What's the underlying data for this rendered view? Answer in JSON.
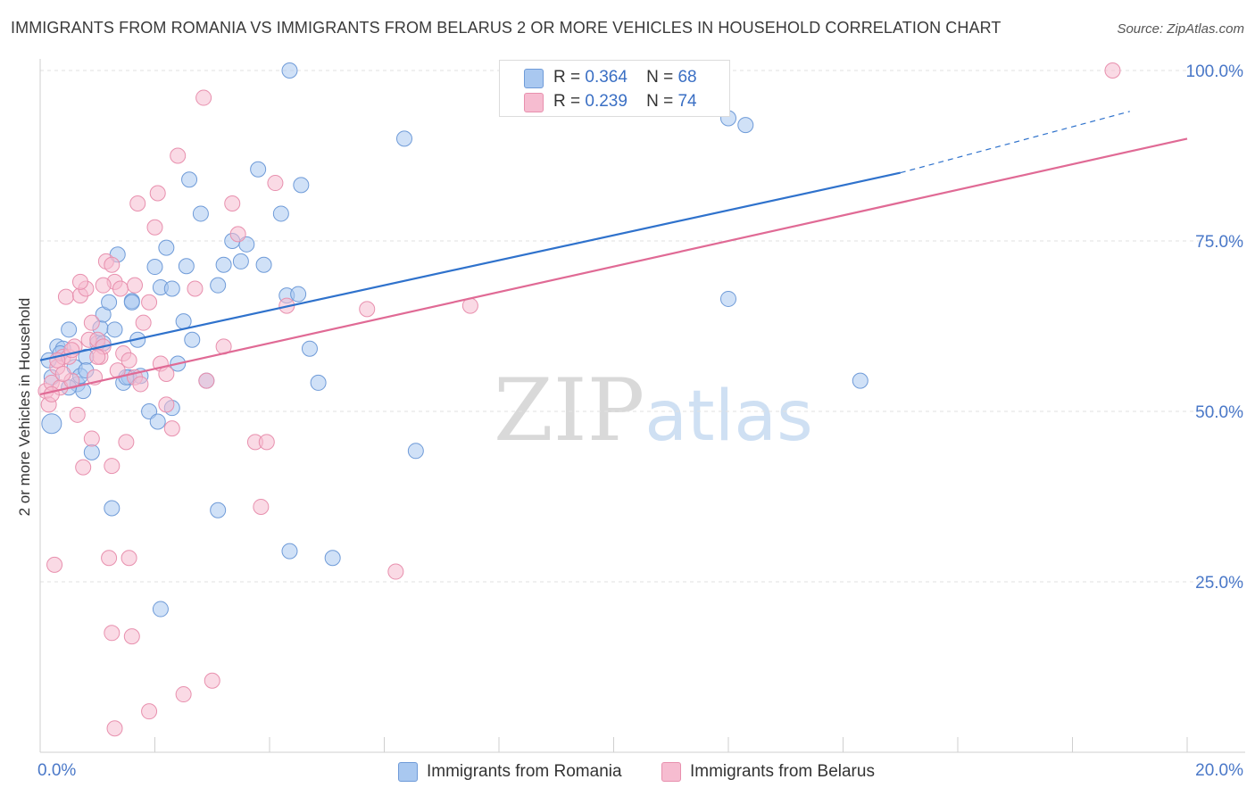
{
  "title": "IMMIGRANTS FROM ROMANIA VS IMMIGRANTS FROM BELARUS 2 OR MORE VEHICLES IN HOUSEHOLD CORRELATION CHART",
  "source": "Source: ZipAtlas.com",
  "watermark": {
    "zip": "ZIP",
    "atlas": "atlas"
  },
  "legend_top": {
    "rows": [
      {
        "r_label": "R =",
        "r_value": "0.364",
        "n_label": "N =",
        "n_value": "68"
      },
      {
        "r_label": "R =",
        "r_value": "0.239",
        "n_label": "N =",
        "n_value": "74"
      }
    ]
  },
  "colors": {
    "romania_fill": "#a9c8f0",
    "romania_stroke": "#6f9bd8",
    "romania_line": "#2f72cc",
    "belarus_fill": "#f6bcd0",
    "belarus_stroke": "#e890ae",
    "belarus_line": "#e06a95",
    "grid": "#e2e2e2",
    "axis_text": "#4a78c8"
  },
  "chart_data": {
    "type": "scatter",
    "title": "IMMIGRANTS FROM ROMANIA VS IMMIGRANTS FROM BELARUS 2 OR MORE VEHICLES IN HOUSEHOLD CORRELATION CHART",
    "xlabel": "",
    "ylabel": "2 or more Vehicles in Household",
    "xlim": [
      0,
      20
    ],
    "ylim": [
      0,
      100
    ],
    "x_tick_labels": [
      "0.0%",
      "20.0%"
    ],
    "y_ticks": [
      25,
      50,
      75,
      100
    ],
    "y_tick_labels": [
      "25.0%",
      "50.0%",
      "75.0%",
      "100.0%"
    ],
    "legend_position": "bottom-center",
    "series": [
      {
        "name": "Immigrants from Romania",
        "r": 0.364,
        "n": 68,
        "trend": {
          "x0": 0,
          "y0": 57.5,
          "x1": 15.0,
          "y1": 85.0,
          "dashed_to_x": 19.0,
          "dashed_to_y": 94.0
        },
        "points": [
          [
            0.15,
            57.5
          ],
          [
            0.2,
            48.2
          ],
          [
            0.3,
            59.5
          ],
          [
            0.4,
            59.2
          ],
          [
            0.5,
            62.0
          ],
          [
            0.6,
            56.5
          ],
          [
            0.65,
            54.0
          ],
          [
            0.7,
            55.2
          ],
          [
            0.75,
            53.0
          ],
          [
            0.8,
            58.0
          ],
          [
            0.9,
            44.0
          ],
          [
            1.0,
            60.0
          ],
          [
            1.05,
            62.2
          ],
          [
            1.1,
            64.2
          ],
          [
            1.2,
            66.0
          ],
          [
            1.3,
            62.0
          ],
          [
            1.35,
            73.0
          ],
          [
            1.45,
            54.2
          ],
          [
            1.55,
            55.0
          ],
          [
            1.6,
            66.2
          ],
          [
            1.7,
            60.5
          ],
          [
            1.75,
            55.2
          ],
          [
            1.9,
            50.0
          ],
          [
            2.0,
            71.2
          ],
          [
            2.05,
            48.5
          ],
          [
            2.1,
            68.2
          ],
          [
            2.2,
            74.0
          ],
          [
            2.3,
            50.5
          ],
          [
            2.4,
            57.0
          ],
          [
            2.5,
            63.2
          ],
          [
            2.55,
            71.3
          ],
          [
            2.6,
            84.0
          ],
          [
            2.65,
            60.5
          ],
          [
            2.8,
            79.0
          ],
          [
            2.9,
            54.5
          ],
          [
            3.1,
            68.5
          ],
          [
            3.2,
            71.5
          ],
          [
            3.5,
            72.0
          ],
          [
            3.6,
            74.5
          ],
          [
            3.35,
            75.0
          ],
          [
            3.9,
            71.5
          ],
          [
            3.8,
            85.5
          ],
          [
            4.2,
            79.0
          ],
          [
            4.3,
            67.0
          ],
          [
            4.5,
            67.2
          ],
          [
            4.55,
            83.2
          ],
          [
            4.7,
            59.2
          ],
          [
            4.85,
            54.2
          ],
          [
            4.35,
            29.5
          ],
          [
            5.1,
            28.5
          ],
          [
            6.35,
            90.0
          ],
          [
            6.55,
            44.2
          ],
          [
            4.35,
            100.0
          ],
          [
            12.0,
            93.0
          ],
          [
            12.3,
            92.0
          ],
          [
            12.0,
            66.5
          ],
          [
            14.3,
            54.5
          ],
          [
            2.1,
            21.0
          ],
          [
            3.1,
            35.5
          ],
          [
            1.25,
            35.8
          ],
          [
            1.5,
            55.0
          ],
          [
            0.35,
            58.5
          ],
          [
            0.8,
            56.0
          ],
          [
            1.1,
            60.0
          ],
          [
            1.6,
            66.0
          ],
          [
            2.3,
            68.0
          ],
          [
            0.5,
            53.5
          ],
          [
            0.2,
            55.0
          ]
        ]
      },
      {
        "name": "Immigrants from Belarus",
        "r": 0.239,
        "n": 74,
        "trend": {
          "x0": 0,
          "y0": 52.5,
          "x1": 20.0,
          "y1": 90.0
        },
        "points": [
          [
            0.1,
            53.0
          ],
          [
            0.15,
            51.0
          ],
          [
            0.2,
            54.2
          ],
          [
            0.25,
            27.5
          ],
          [
            0.3,
            56.5
          ],
          [
            0.35,
            53.5
          ],
          [
            0.4,
            58.0
          ],
          [
            0.45,
            66.8
          ],
          [
            0.5,
            58.0
          ],
          [
            0.55,
            54.5
          ],
          [
            0.6,
            59.5
          ],
          [
            0.65,
            49.5
          ],
          [
            0.7,
            67.0
          ],
          [
            0.75,
            41.8
          ],
          [
            0.8,
            68.0
          ],
          [
            0.85,
            60.5
          ],
          [
            0.9,
            46.0
          ],
          [
            0.95,
            55.0
          ],
          [
            1.0,
            60.5
          ],
          [
            1.05,
            58.0
          ],
          [
            1.1,
            59.5
          ],
          [
            1.15,
            72.0
          ],
          [
            1.2,
            28.5
          ],
          [
            1.25,
            42.0
          ],
          [
            1.3,
            69.0
          ],
          [
            1.35,
            56.0
          ],
          [
            1.4,
            68.0
          ],
          [
            1.45,
            58.5
          ],
          [
            1.5,
            45.5
          ],
          [
            1.55,
            28.5
          ],
          [
            1.6,
            17.0
          ],
          [
            1.65,
            55.0
          ],
          [
            1.7,
            80.5
          ],
          [
            1.75,
            54.0
          ],
          [
            1.8,
            63.0
          ],
          [
            1.9,
            66.0
          ],
          [
            2.0,
            77.0
          ],
          [
            2.05,
            82.0
          ],
          [
            2.1,
            57.0
          ],
          [
            2.2,
            51.0
          ],
          [
            2.3,
            47.5
          ],
          [
            2.4,
            87.5
          ],
          [
            2.5,
            8.5
          ],
          [
            2.7,
            68.0
          ],
          [
            2.85,
            96.0
          ],
          [
            2.9,
            54.5
          ],
          [
            3.0,
            10.5
          ],
          [
            3.2,
            59.5
          ],
          [
            3.35,
            80.5
          ],
          [
            3.45,
            76.0
          ],
          [
            3.75,
            45.5
          ],
          [
            3.85,
            36.0
          ],
          [
            3.95,
            45.5
          ],
          [
            4.1,
            83.5
          ],
          [
            4.3,
            65.5
          ],
          [
            5.7,
            65.0
          ],
          [
            6.2,
            26.5
          ],
          [
            7.5,
            65.5
          ],
          [
            1.3,
            3.5
          ],
          [
            1.9,
            6.0
          ],
          [
            1.25,
            17.5
          ],
          [
            18.7,
            100.0
          ],
          [
            0.3,
            57.5
          ],
          [
            0.7,
            69.0
          ],
          [
            1.1,
            68.5
          ],
          [
            1.25,
            71.5
          ],
          [
            0.9,
            63.0
          ],
          [
            1.55,
            57.5
          ],
          [
            0.4,
            55.5
          ],
          [
            0.2,
            52.5
          ],
          [
            1.65,
            68.5
          ],
          [
            2.2,
            55.5
          ],
          [
            0.55,
            59.0
          ],
          [
            1.0,
            58.0
          ]
        ]
      }
    ]
  },
  "bottom_legend": [
    {
      "label": "Immigrants from Romania"
    },
    {
      "label": "Immigrants from Belarus"
    }
  ]
}
